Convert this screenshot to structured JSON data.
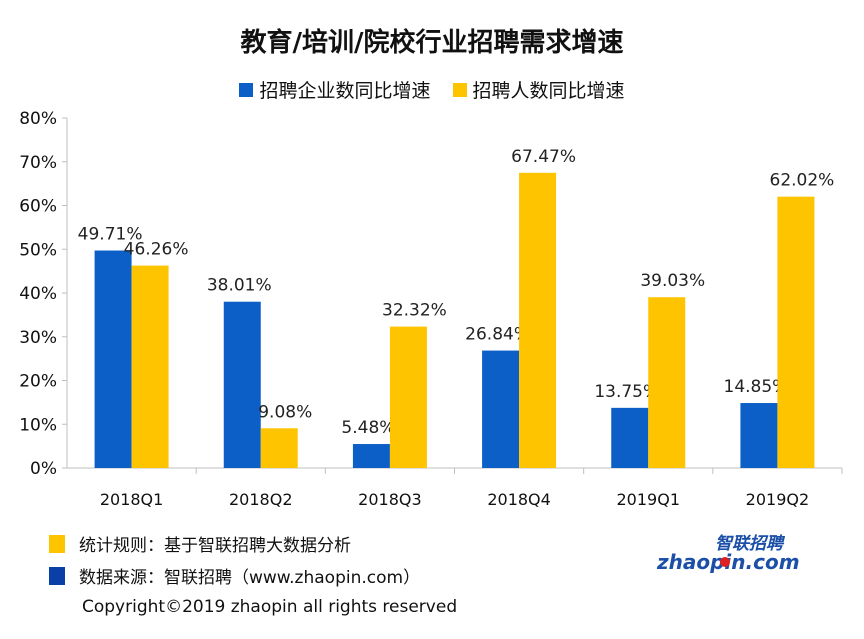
{
  "colors": {
    "companies": "#0B5FC7",
    "people": "#FFC400",
    "axis": "#BFBFBF"
  },
  "footer": {
    "rule": "统计规则：基于智联招聘大数据分析",
    "source": "数据来源：智联招聘（www.zhaopin.com）",
    "copyright": "Copyright©2019 zhaopin all rights reserved"
  },
  "logo": {
    "top_text": "智联招聘",
    "bottom_text": "zhaopin.com"
  },
  "chart_data": {
    "type": "bar",
    "title": "教育/培训/院校行业招聘需求增速",
    "categories": [
      "2018Q1",
      "2018Q2",
      "2018Q3",
      "2018Q4",
      "2019Q1",
      "2019Q2"
    ],
    "series": [
      {
        "name": "招聘企业数同比增速",
        "values": [
          49.71,
          38.01,
          5.48,
          26.84,
          13.75,
          14.85
        ],
        "labels": [
          "49.71%",
          "38.01%",
          "5.48%",
          "26.84%",
          "13.75%",
          "14.85%"
        ]
      },
      {
        "name": "招聘人数同比增速",
        "values": [
          46.26,
          9.08,
          32.32,
          67.47,
          39.03,
          62.02
        ],
        "labels": [
          "46.26%",
          "9.08%",
          "32.32%",
          "67.47%",
          "39.03%",
          "62.02%"
        ]
      }
    ],
    "ylim": [
      0,
      80
    ],
    "yticks": [
      "0%",
      "10%",
      "20%",
      "30%",
      "40%",
      "50%",
      "60%",
      "70%",
      "80%"
    ],
    "legend": "top-center",
    "grid": false
  }
}
